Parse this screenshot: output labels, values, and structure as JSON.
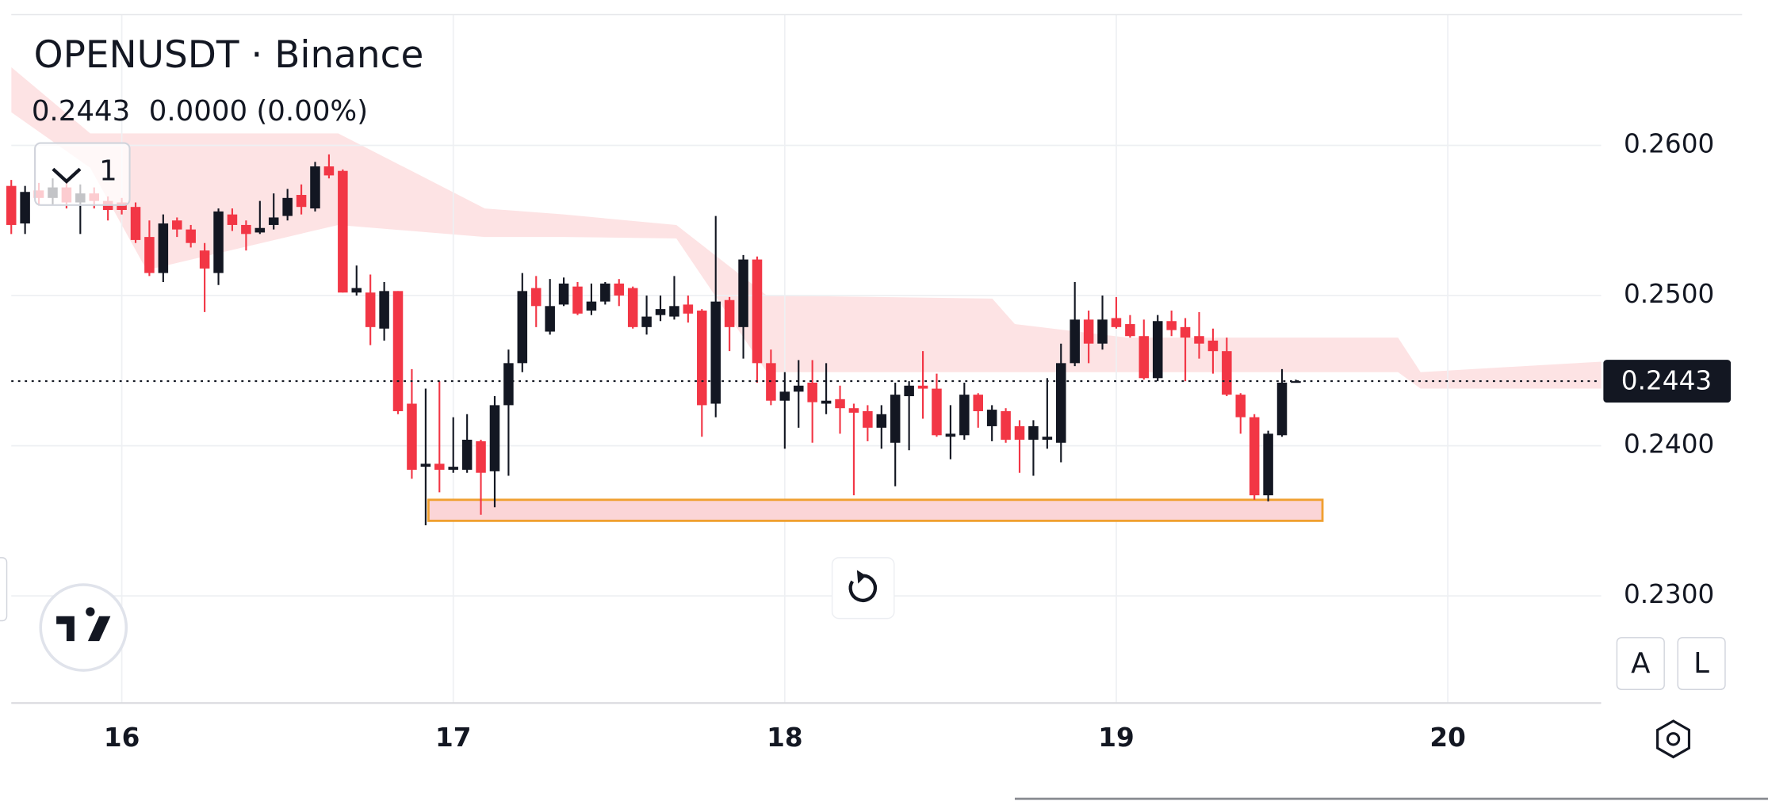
{
  "chart_data": {
    "type": "candlestick",
    "title": "OPENUSDT · Binance",
    "last_price": 0.2443,
    "change": "0.0000 (0.00%)",
    "interval_button": "1",
    "scale_buttons": [
      "A",
      "L"
    ],
    "up_color": "#131722",
    "down_color": "#f23645",
    "grid": true,
    "xlim": [
      15.6667,
      20.4626
    ],
    "ylim": [
      0.22287,
      0.26968
    ],
    "xticks": [
      16,
      17,
      18,
      19,
      20
    ],
    "yticks": [
      {
        "value": 0.23,
        "label": "0.2300"
      },
      {
        "value": 0.24,
        "label": "0.2400"
      },
      {
        "value": 0.25,
        "label": "0.2500"
      },
      {
        "value": 0.26,
        "label": "0.2600"
      }
    ],
    "x": [
      15.6667,
      15.7083,
      15.75,
      15.7917,
      15.8333,
      15.875,
      15.9167,
      15.9583,
      16,
      16.0417,
      16.0833,
      16.125,
      16.1667,
      16.2083,
      16.25,
      16.2917,
      16.3333,
      16.375,
      16.4167,
      16.4583,
      16.5,
      16.5417,
      16.5833,
      16.625,
      16.6667,
      16.7083,
      16.75,
      16.7917,
      16.8333,
      16.875,
      16.9167,
      16.9583,
      17,
      17.0417,
      17.0833,
      17.125,
      17.1667,
      17.2083,
      17.25,
      17.2917,
      17.3333,
      17.375,
      17.4167,
      17.4583,
      17.5,
      17.5417,
      17.5833,
      17.625,
      17.6667,
      17.7083,
      17.75,
      17.7917,
      17.8333,
      17.875,
      17.9167,
      17.9583,
      18,
      18.0417,
      18.0833,
      18.125,
      18.1667,
      18.2083,
      18.25,
      18.2917,
      18.3333,
      18.375,
      18.4167,
      18.4583,
      18.5,
      18.5417,
      18.5833,
      18.625,
      18.6667,
      18.7083,
      18.75,
      18.7917,
      18.8333,
      18.875,
      18.9167,
      18.9583,
      19,
      19.0417,
      19.0833,
      19.125,
      19.1667,
      19.2083,
      19.25,
      19.2917,
      19.3333,
      19.375,
      19.4167,
      19.4583,
      19.5,
      19.5417
    ],
    "open": [
      0.2573,
      0.2548,
      0.257,
      0.2565,
      0.2572,
      0.2562,
      0.2568,
      0.2563,
      0.2562,
      0.2559,
      0.2539,
      0.2515,
      0.255,
      0.2544,
      0.253,
      0.2515,
      0.2554,
      0.2547,
      0.2542,
      0.2547,
      0.2553,
      0.2567,
      0.2558,
      0.2586,
      0.2583,
      0.2502,
      0.2502,
      0.2478,
      0.2503,
      0.2428,
      0.2386,
      0.2388,
      0.2384,
      0.2384,
      0.2403,
      0.2383,
      0.2427,
      0.2455,
      0.2505,
      0.2476,
      0.2494,
      0.2506,
      0.249,
      0.2496,
      0.2508,
      0.2505,
      0.2479,
      0.2487,
      0.2486,
      0.2494,
      0.249,
      0.2428,
      0.2497,
      0.2479,
      0.2524,
      0.2455,
      0.243,
      0.2436,
      0.2442,
      0.2428,
      0.2431,
      0.2425,
      0.2423,
      0.2412,
      0.2402,
      0.2433,
      0.244,
      0.2438,
      0.2406,
      0.2407,
      0.2434,
      0.2413,
      0.2423,
      0.2413,
      0.2404,
      0.2404,
      0.2402,
      0.2455,
      0.2484,
      0.2468,
      0.2485,
      0.2481,
      0.2473,
      0.2445,
      0.2483,
      0.2479,
      0.2473,
      0.247,
      0.2463,
      0.2434,
      0.2419,
      0.2367,
      0.2407,
      0.2442
    ],
    "high": [
      0.2577,
      0.2573,
      0.2575,
      0.2578,
      0.2576,
      0.2574,
      0.2572,
      0.2566,
      0.2565,
      0.2562,
      0.255,
      0.2554,
      0.2552,
      0.2547,
      0.2535,
      0.2558,
      0.2558,
      0.255,
      0.2563,
      0.2568,
      0.2571,
      0.2574,
      0.2589,
      0.2594,
      0.2584,
      0.252,
      0.2514,
      0.2509,
      0.2503,
      0.2451,
      0.2438,
      0.2443,
      0.2419,
      0.2421,
      0.2404,
      0.2433,
      0.2464,
      0.2515,
      0.2513,
      0.2511,
      0.2512,
      0.2509,
      0.2508,
      0.2509,
      0.2511,
      0.2506,
      0.25,
      0.25,
      0.2513,
      0.25,
      0.2491,
      0.2553,
      0.2499,
      0.2527,
      0.2526,
      0.2464,
      0.2449,
      0.2457,
      0.2457,
      0.2455,
      0.244,
      0.2428,
      0.2427,
      0.2427,
      0.2442,
      0.2443,
      0.2463,
      0.2448,
      0.2427,
      0.2442,
      0.2435,
      0.2427,
      0.2425,
      0.2417,
      0.2417,
      0.2445,
      0.2468,
      0.2509,
      0.249,
      0.25,
      0.2499,
      0.2487,
      0.2484,
      0.2487,
      0.249,
      0.2485,
      0.2489,
      0.2478,
      0.2472,
      0.2435,
      0.2421,
      0.241,
      0.2451,
      0.2444
    ],
    "low": [
      0.2541,
      0.2541,
      0.256,
      0.256,
      0.2558,
      0.2541,
      0.2558,
      0.255,
      0.2554,
      0.2535,
      0.2513,
      0.2509,
      0.2539,
      0.2532,
      0.2489,
      0.2507,
      0.2543,
      0.253,
      0.2541,
      0.2544,
      0.255,
      0.2554,
      0.2556,
      0.2578,
      0.2502,
      0.25,
      0.2467,
      0.247,
      0.2421,
      0.2378,
      0.2347,
      0.2369,
      0.2382,
      0.2382,
      0.2354,
      0.2359,
      0.238,
      0.2449,
      0.2479,
      0.2474,
      0.2493,
      0.2487,
      0.2487,
      0.2494,
      0.2493,
      0.2478,
      0.2474,
      0.2483,
      0.2484,
      0.2482,
      0.2406,
      0.2419,
      0.2463,
      0.2458,
      0.2442,
      0.2427,
      0.2398,
      0.2412,
      0.2402,
      0.2421,
      0.2408,
      0.2367,
      0.2403,
      0.2398,
      0.2373,
      0.2397,
      0.2418,
      0.2406,
      0.2391,
      0.2404,
      0.2412,
      0.2403,
      0.2402,
      0.2382,
      0.238,
      0.2398,
      0.2389,
      0.2453,
      0.2455,
      0.2464,
      0.2478,
      0.2472,
      0.2444,
      0.2443,
      0.2473,
      0.2443,
      0.2458,
      0.2448,
      0.2433,
      0.2408,
      0.2364,
      0.2363,
      0.2406,
      0.2442
    ],
    "close": [
      0.2547,
      0.2569,
      0.2565,
      0.2572,
      0.2562,
      0.2568,
      0.2563,
      0.2557,
      0.2557,
      0.2537,
      0.2515,
      0.2548,
      0.2544,
      0.2535,
      0.2518,
      0.2556,
      0.2547,
      0.2541,
      0.2545,
      0.2552,
      0.2565,
      0.2559,
      0.2586,
      0.258,
      0.2502,
      0.2505,
      0.2479,
      0.2503,
      0.2423,
      0.2384,
      0.2388,
      0.2384,
      0.2386,
      0.2404,
      0.2382,
      0.2427,
      0.2455,
      0.2503,
      0.2493,
      0.2493,
      0.2508,
      0.2488,
      0.2496,
      0.2508,
      0.25,
      0.2479,
      0.2486,
      0.2491,
      0.2493,
      0.2488,
      0.2427,
      0.2496,
      0.2479,
      0.2524,
      0.2455,
      0.243,
      0.2436,
      0.244,
      0.2429,
      0.243,
      0.2425,
      0.2422,
      0.2412,
      0.2421,
      0.2434,
      0.244,
      0.2438,
      0.2407,
      0.2408,
      0.2434,
      0.2423,
      0.2424,
      0.2404,
      0.2404,
      0.2413,
      0.2406,
      0.2455,
      0.2484,
      0.2468,
      0.2484,
      0.2479,
      0.2473,
      0.2445,
      0.2483,
      0.2477,
      0.2472,
      0.2468,
      0.2463,
      0.2434,
      0.2419,
      0.2367,
      0.2408,
      0.2442,
      0.2443
    ],
    "cloud": {
      "color": "#fde3e4",
      "x": [
        15.667,
        15.905,
        16.075,
        16.653,
        17.095,
        17.333,
        17.673,
        17.946,
        18.626,
        18.694,
        19.034,
        19.85,
        19.918,
        20.463
      ],
      "top": [
        0.2652,
        0.2608,
        0.2608,
        0.2608,
        0.2558,
        0.2554,
        0.2547,
        0.25,
        0.2498,
        0.2481,
        0.2472,
        0.2472,
        0.2449,
        0.2456
      ],
      "bottom": [
        0.2622,
        0.2585,
        0.2517,
        0.2547,
        0.2539,
        0.2539,
        0.2538,
        0.2449,
        0.2449,
        0.2449,
        0.2449,
        0.2449,
        0.2438,
        0.2438
      ]
    },
    "zone": {
      "x": [
        16.925,
        19.622
      ],
      "y": [
        0.235,
        0.2364
      ],
      "color": "#fbd5d7",
      "border": "#f0a030"
    }
  }
}
